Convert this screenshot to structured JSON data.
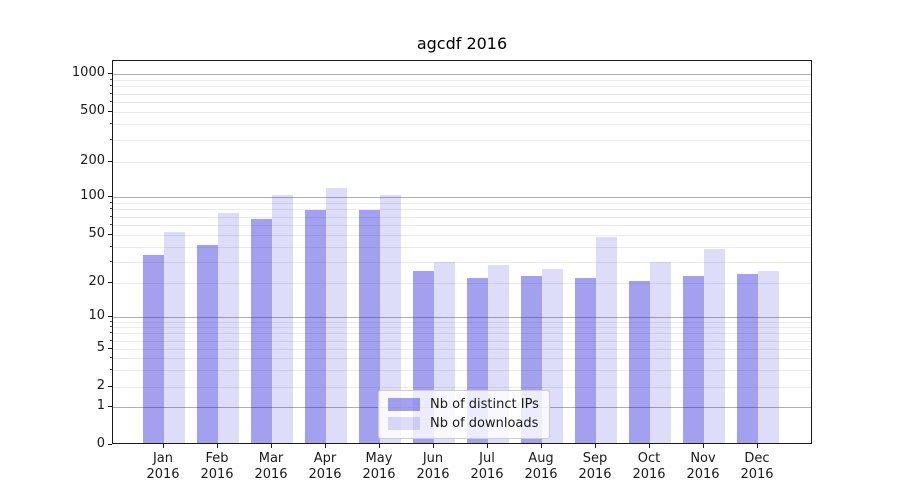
{
  "chart_data": {
    "type": "bar",
    "title": "agcdf 2016",
    "categories": [
      "Jan",
      "Feb",
      "Mar",
      "Apr",
      "May",
      "Jun",
      "Jul",
      "Aug",
      "Sep",
      "Oct",
      "Nov",
      "Dec"
    ],
    "year": "2016",
    "series": [
      {
        "name": "Nb of distinct IPs",
        "key": "distinct-ips",
        "color": "rgba(25,20,215,0.40)",
        "values": [
          33,
          40,
          64,
          76,
          76,
          24,
          21,
          22,
          21,
          20,
          22,
          23
        ]
      },
      {
        "name": "Nb of downloads",
        "key": "downloads",
        "color": "rgba(25,20,215,0.15)",
        "values": [
          51,
          72,
          100,
          115,
          100,
          29,
          27,
          25,
          46,
          29,
          37,
          24
        ]
      }
    ],
    "yticks": [
      0,
      1,
      2,
      5,
      10,
      20,
      50,
      100,
      200,
      500,
      1000
    ],
    "ylim": [
      0,
      1500
    ],
    "yscale": "symlog",
    "grid": true,
    "legend_position": "lower center",
    "xlabel": "",
    "ylabel": ""
  }
}
